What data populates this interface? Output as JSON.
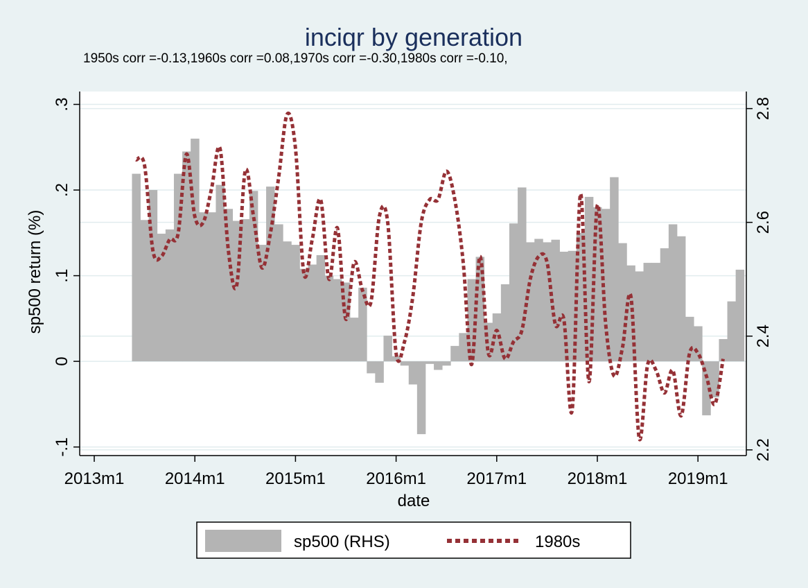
{
  "chart_data": {
    "type": "bar",
    "title": "inciqr by generation",
    "subtitle": "1950s corr =-0.13,1960s corr =0.08,1970s corr =-0.30,1980s corr =-0.10,",
    "xlabel": "date",
    "ylabel": "sp500 return (%)",
    "x_ticks": [
      "2013m1",
      "2014m1",
      "2015m1",
      "2016m1",
      "2017m1",
      "2018m1",
      "2019m1"
    ],
    "y_left_ticks": [
      "-.1",
      "0",
      ".1",
      ".2",
      ".3"
    ],
    "y_left_range": [
      -0.11,
      0.315
    ],
    "y_right_ticks": [
      "2.2",
      "2.4",
      "2.6",
      "2.8"
    ],
    "y_right_range": [
      2.19,
      2.83
    ],
    "grid": true,
    "legend_position": "bottom",
    "series": [
      {
        "name": "sp500 (RHS)",
        "kind": "bar",
        "axis": "left",
        "color": "#b4b4b4",
        "start_month": "2013m6",
        "values": [
          0.219,
          0.165,
          0.2,
          0.149,
          0.154,
          0.219,
          0.245,
          0.26,
          0.174,
          0.174,
          0.206,
          0.178,
          0.164,
          0.166,
          0.199,
          0.136,
          0.204,
          0.16,
          0.14,
          0.136,
          0.108,
          0.113,
          0.124,
          0.1,
          0.096,
          0.092,
          0.051,
          0.086,
          -0.014,
          -0.025,
          0.03,
          0.006,
          -0.005,
          -0.027,
          -0.085,
          -0.003,
          -0.01,
          -0.005,
          0.018,
          0.033,
          0.096,
          0.122,
          0.045,
          0.056,
          0.09,
          0.161,
          0.203,
          0.139,
          0.143,
          0.139,
          0.142,
          0.128,
          0.129,
          0.15,
          0.192,
          0.18,
          0.178,
          0.215,
          0.138,
          0.112,
          0.105,
          0.115,
          0.115,
          0.132,
          0.16,
          0.146,
          0.052,
          0.041,
          -0.063,
          -0.042,
          0.026,
          0.07,
          0.107
        ]
      },
      {
        "name": "1980s",
        "kind": "line",
        "axis": "right",
        "color": "#953136",
        "style": "dotted",
        "start_month": "2013m6",
        "values": [
          2.71,
          2.7,
          2.55,
          2.54,
          2.57,
          2.58,
          2.72,
          2.61,
          2.6,
          2.66,
          2.73,
          2.55,
          2.49,
          2.69,
          2.61,
          2.52,
          2.58,
          2.68,
          2.79,
          2.73,
          2.51,
          2.57,
          2.64,
          2.5,
          2.59,
          2.43,
          2.53,
          2.48,
          2.46,
          2.61,
          2.6,
          2.37,
          2.39,
          2.47,
          2.6,
          2.64,
          2.64,
          2.69,
          2.64,
          2.53,
          2.35,
          2.54,
          2.37,
          2.41,
          2.36,
          2.39,
          2.41,
          2.5,
          2.54,
          2.53,
          2.42,
          2.43,
          2.27,
          2.65,
          2.32,
          2.63,
          2.42,
          2.33,
          2.38,
          2.47,
          2.22,
          2.35,
          2.34,
          2.3,
          2.34,
          2.26,
          2.37,
          2.37,
          2.33,
          2.28,
          2.36
        ]
      }
    ]
  }
}
